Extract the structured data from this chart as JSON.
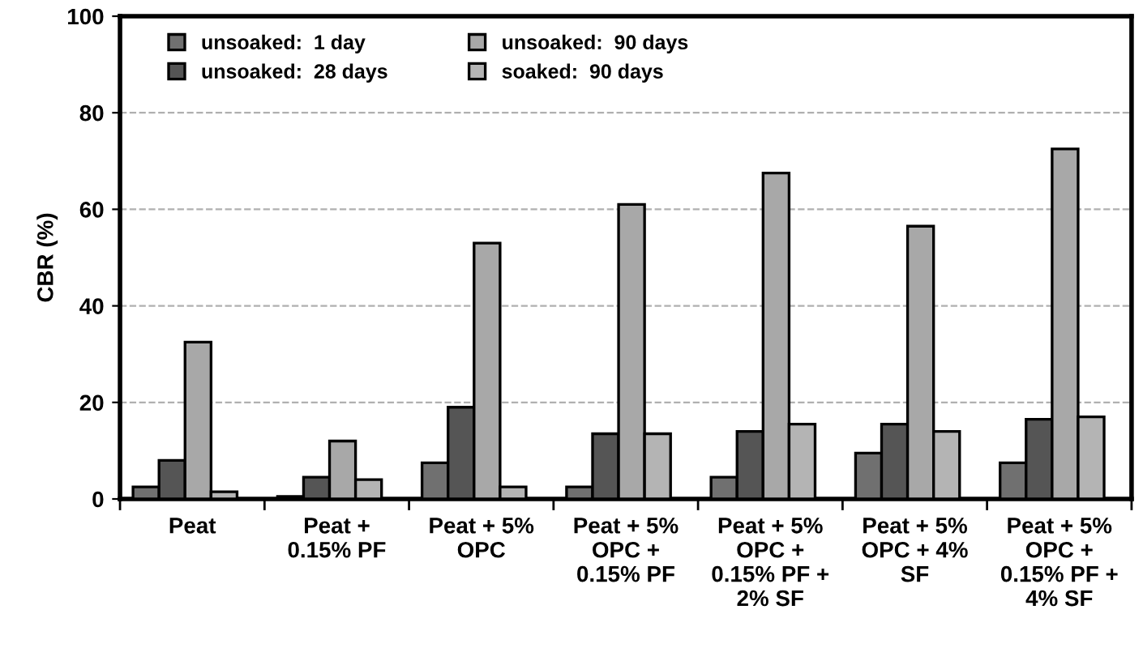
{
  "chart_data": {
    "type": "bar",
    "ylabel": "CBR (%)",
    "categories": [
      "Peat",
      "Peat +\n0.15% PF",
      "Peat + 5%\nOPC",
      "Peat + 5%\nOPC +\n0.15% PF",
      "Peat + 5%\nOPC +\n0.15% PF +\n2% SF",
      "Peat + 5%\nOPC + 4%\nSF",
      "Peat + 5%\nOPC +\n0.15% PF +\n4% SF"
    ],
    "series": [
      {
        "name": "unsoaked:  1 day",
        "color": "#707070",
        "values": [
          2.5,
          0.5,
          7.5,
          2.5,
          4.5,
          9.5,
          7.5
        ]
      },
      {
        "name": "unsoaked:  28 days",
        "color": "#555555",
        "values": [
          8,
          4.5,
          19,
          13.5,
          14,
          15.5,
          16.5
        ]
      },
      {
        "name": "unsoaked:  90 days",
        "color": "#a8a8a8",
        "values": [
          32.5,
          12,
          53,
          61,
          67.5,
          56.5,
          72.5
        ]
      },
      {
        "name": "soaked:  90 days",
        "color": "#b4b4b4",
        "values": [
          1.5,
          4,
          2.5,
          13.5,
          15.5,
          14,
          17
        ]
      }
    ],
    "ylim": [
      0,
      100
    ],
    "yticks": [
      0,
      20,
      40,
      60,
      80,
      100
    ],
    "grid": "y",
    "legend": "top left"
  }
}
